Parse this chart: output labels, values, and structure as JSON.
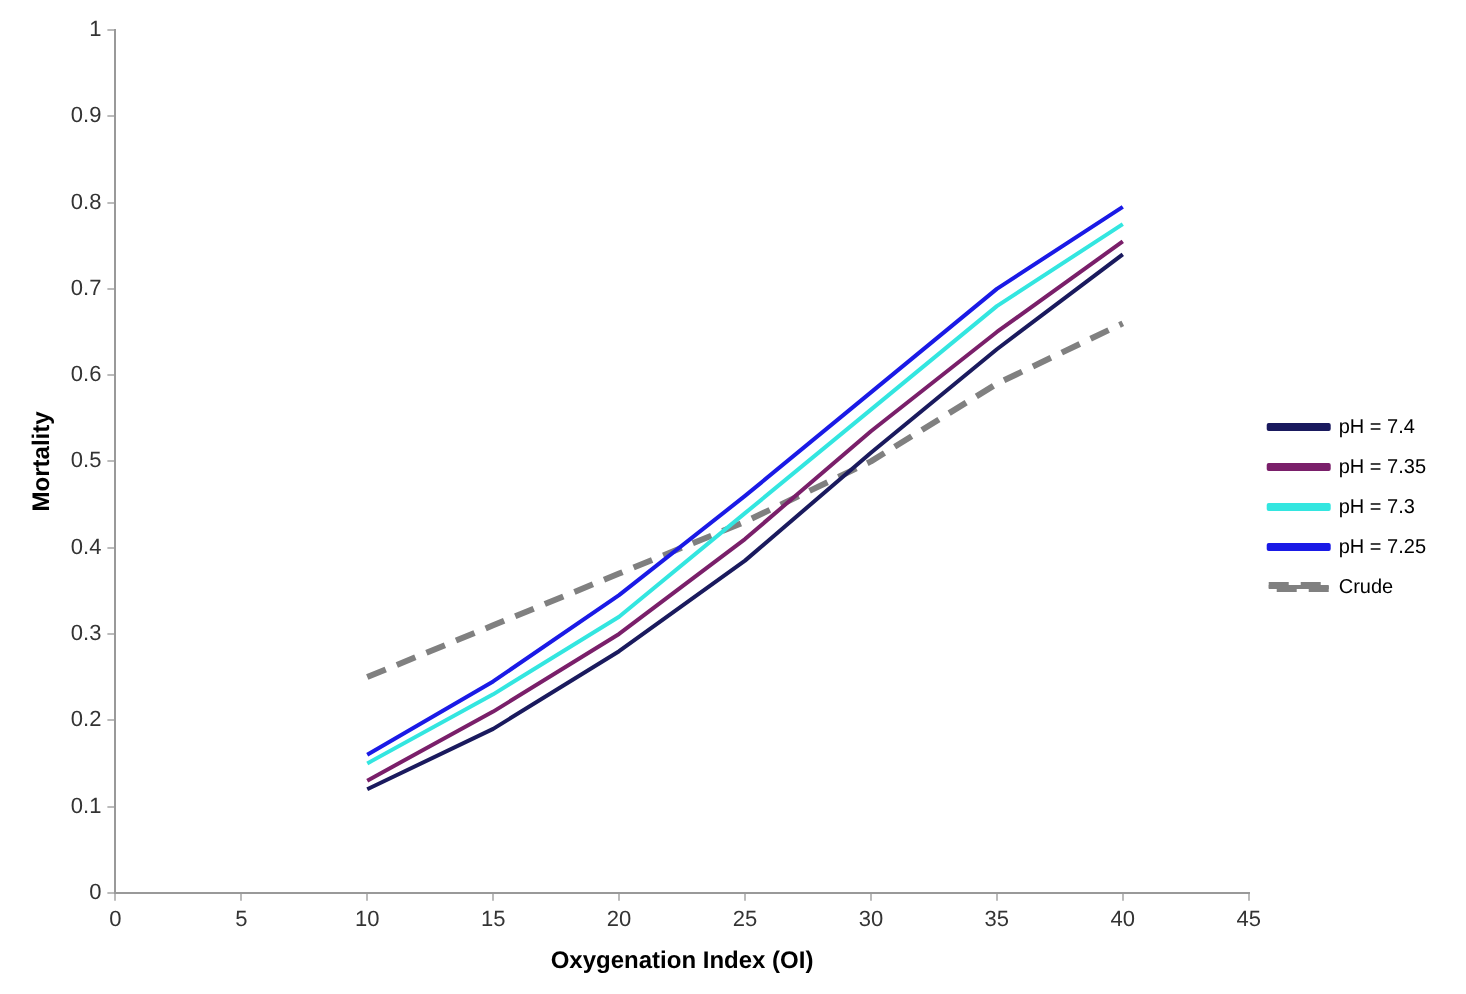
{
  "chart_data": {
    "type": "line",
    "xlabel": "Oxygenation Index (OI)",
    "ylabel": "Mortality",
    "x": [
      10,
      15,
      20,
      25,
      30,
      35,
      40
    ],
    "series": [
      {
        "name": "pH = 7.4",
        "color": "#1a1a5e",
        "values": [
          0.12,
          0.19,
          0.28,
          0.385,
          0.51,
          0.63,
          0.74
        ]
      },
      {
        "name": "pH = 7.35",
        "color": "#7a1f6a",
        "values": [
          0.13,
          0.21,
          0.3,
          0.41,
          0.535,
          0.65,
          0.755
        ]
      },
      {
        "name": "pH = 7.3",
        "color": "#33e6e0",
        "values": [
          0.15,
          0.23,
          0.32,
          0.44,
          0.56,
          0.68,
          0.775
        ]
      },
      {
        "name": "pH = 7.25",
        "color": "#1a1ae6",
        "values": [
          0.16,
          0.245,
          0.345,
          0.46,
          0.58,
          0.7,
          0.795
        ]
      },
      {
        "name": "Crude",
        "color": "#808080",
        "line_style": "dashed",
        "values": [
          0.25,
          0.31,
          0.37,
          0.43,
          0.5,
          0.59,
          0.66
        ]
      }
    ],
    "xlim": [
      0,
      45
    ],
    "xticks": [
      0,
      5,
      10,
      15,
      20,
      25,
      30,
      35,
      40,
      45
    ],
    "ylim": [
      0,
      1
    ],
    "yticks": [
      0,
      0.1,
      0.2,
      0.3,
      0.4,
      0.5,
      0.6,
      0.7,
      0.8,
      0.9,
      1
    ],
    "grid": false,
    "legend": "right",
    "marker": "none"
  }
}
